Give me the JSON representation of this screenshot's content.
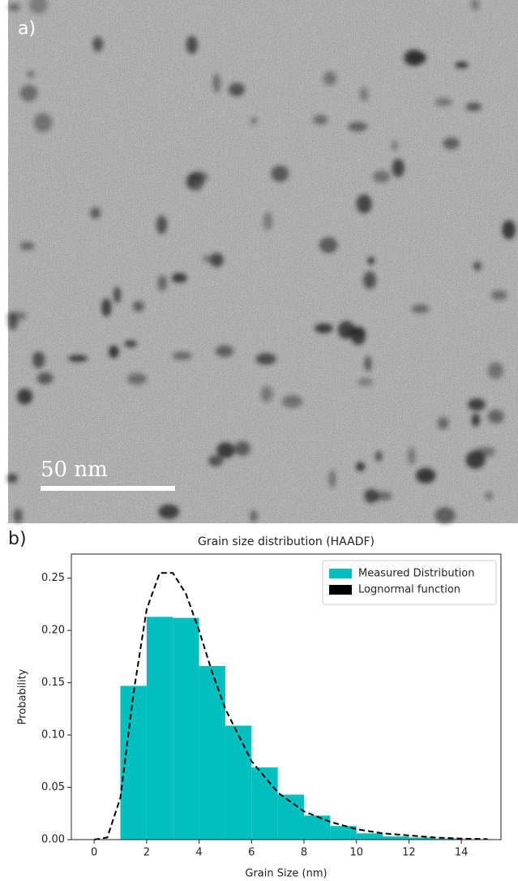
{
  "panel_a": {
    "label": "a)",
    "scale_bar": "50 nm"
  },
  "panel_b_label": "b)",
  "chart_data": {
    "type": "histogram",
    "title": "Grain size distribution (HAADF)",
    "x_label": "Grain Size (nm)",
    "y_label": "Probability",
    "bins": [
      1,
      2,
      3,
      4,
      5,
      6,
      7,
      8,
      9,
      10,
      11,
      12,
      13,
      14
    ],
    "series": [
      {
        "name": "Measured Distribution",
        "color": "#00bfbf",
        "values": [
          0.147,
          0.213,
          0.212,
          0.166,
          0.109,
          0.069,
          0.043,
          0.023,
          0.013,
          0.006,
          0.003,
          0.002,
          0.001
        ]
      }
    ],
    "lines": [
      {
        "name": "Lognormal function",
        "color": "#000000",
        "x": [
          0,
          0.5,
          1,
          1.5,
          2,
          2.5,
          3,
          3.5,
          4,
          4.5,
          5,
          6,
          7,
          8,
          9,
          10,
          11,
          12,
          13,
          14,
          15
        ],
        "values": [
          0,
          0.002,
          0.04,
          0.14,
          0.22,
          0.255,
          0.255,
          0.235,
          0.2,
          0.16,
          0.125,
          0.075,
          0.045,
          0.027,
          0.017,
          0.01,
          0.006,
          0.004,
          0.002,
          0.001,
          0.0005
        ]
      }
    ],
    "xlim": [
      -0.87,
      15.51
    ],
    "ylim": [
      0,
      0.273
    ],
    "xticks": [
      0,
      2,
      4,
      6,
      8,
      10,
      12,
      14
    ],
    "yticks": [
      {
        "value": 0,
        "label": "0.00"
      },
      {
        "value": 0.05,
        "label": "0.05"
      },
      {
        "value": 0.1,
        "label": "0.10"
      },
      {
        "value": 0.15,
        "label": "0.15"
      },
      {
        "value": 0.2,
        "label": "0.20"
      },
      {
        "value": 0.25,
        "label": "0.25"
      }
    ],
    "legend": "upper right"
  }
}
